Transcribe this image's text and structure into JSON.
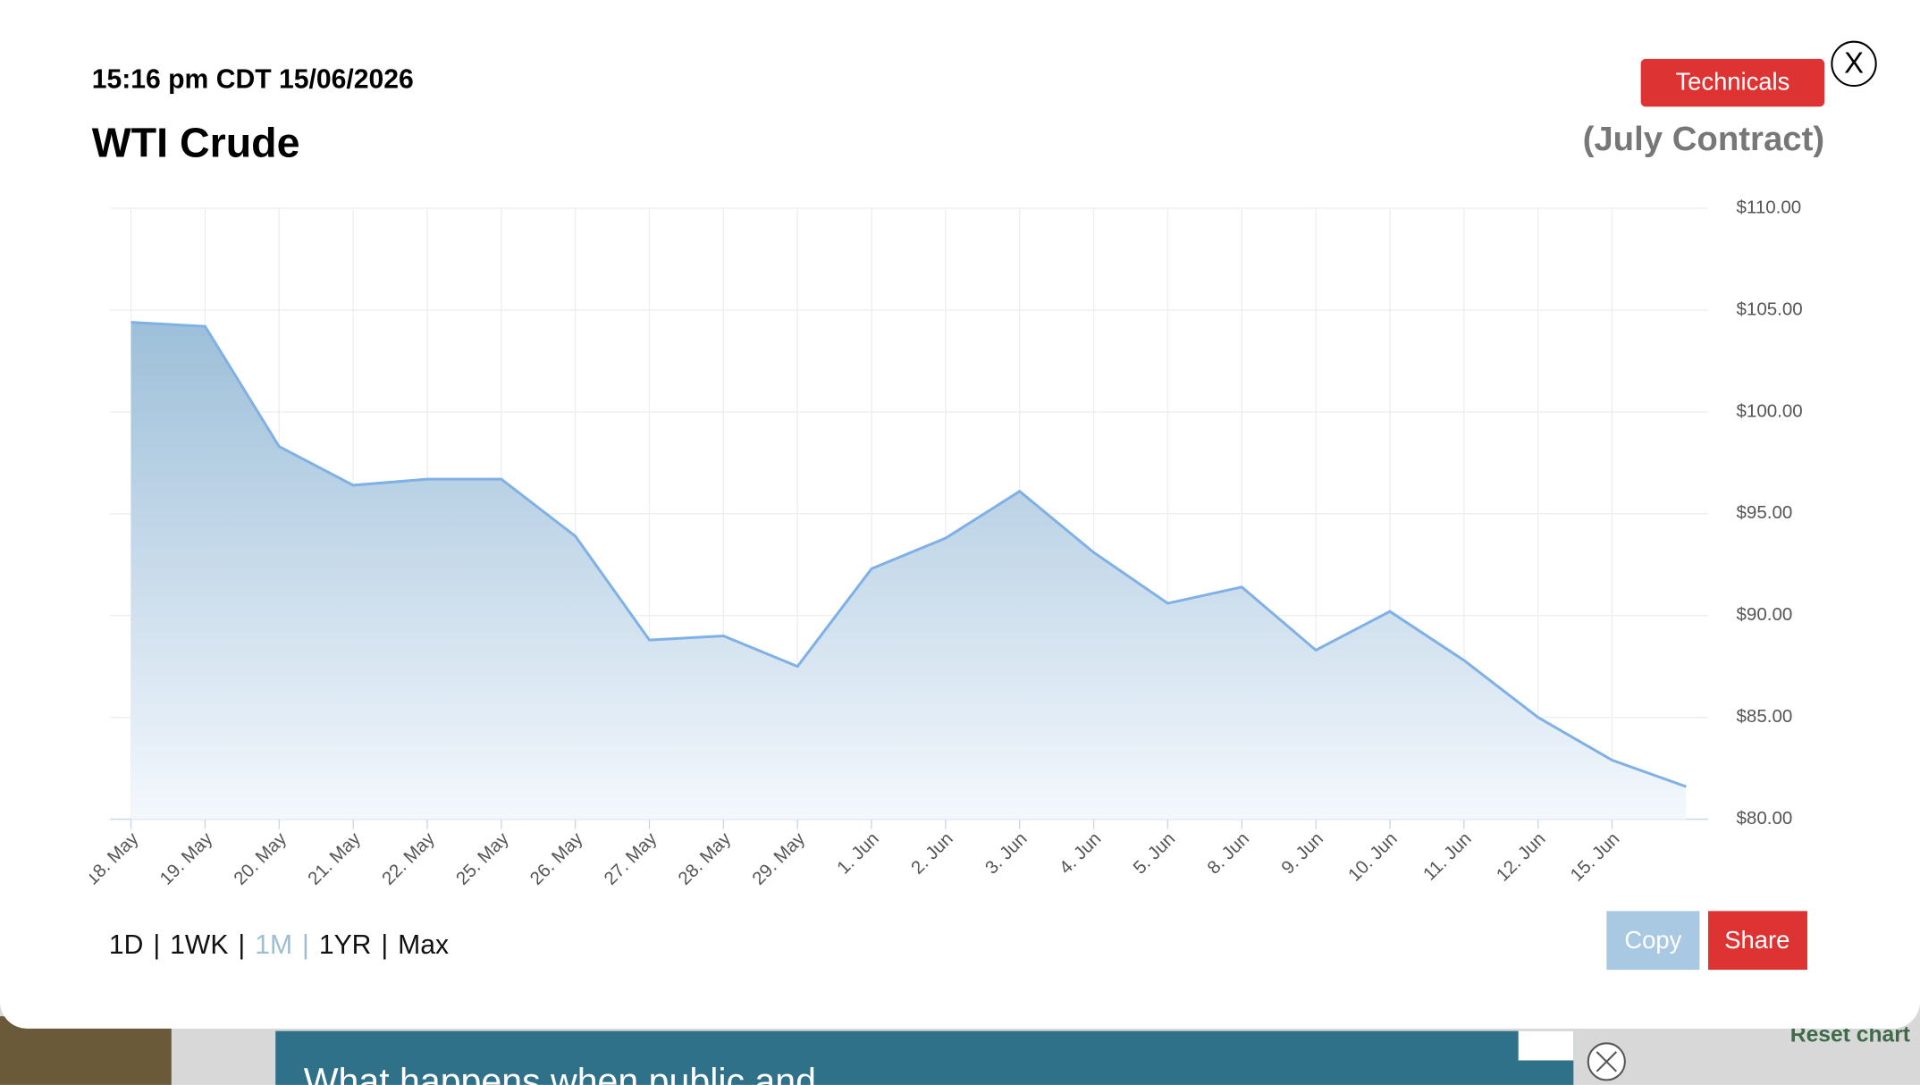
{
  "header": {
    "timestamp": "15:16 pm CDT 15/06/2026",
    "title": "WTI Crude",
    "technicals_button": "Technicals",
    "close_button": "X",
    "contract": "(July Contract)"
  },
  "chart_data": {
    "type": "area",
    "color": "#7fb0e6",
    "categories": [
      "18. May",
      "19. May",
      "20. May",
      "21. May",
      "22. May",
      "25. May",
      "26. May",
      "27. May",
      "28. May",
      "29. May",
      "1. Jun",
      "2. Jun",
      "3. Jun",
      "4. Jun",
      "5. Jun",
      "8. Jun",
      "9. Jun",
      "10. Jun",
      "11. Jun",
      "12. Jun",
      "15. Jun",
      null
    ],
    "values": [
      104.4,
      104.2,
      98.3,
      96.4,
      96.7,
      96.7,
      93.9,
      88.8,
      89.0,
      87.5,
      92.3,
      93.8,
      96.1,
      93.1,
      90.6,
      91.4,
      88.3,
      90.2,
      87.8,
      85.0,
      82.9,
      81.6
    ],
    "ylim": [
      80,
      110
    ],
    "yticks": [
      {
        "value": 80,
        "label": "$80.00"
      },
      {
        "value": 85,
        "label": "$85.00"
      },
      {
        "value": 90,
        "label": "$90.00"
      },
      {
        "value": 95,
        "label": "$95.00"
      },
      {
        "value": 100,
        "label": "$100.00"
      },
      {
        "value": 105,
        "label": "$105.00"
      },
      {
        "value": 110,
        "label": "$110.00"
      }
    ],
    "grid": true
  },
  "ranges": {
    "items": [
      "1D",
      "1WK",
      "1M",
      "1YR",
      "Max"
    ],
    "separator": "|",
    "active": 2
  },
  "actions": {
    "copy": "Copy",
    "share": "Share"
  },
  "background": {
    "ad_text": "What happens when public and",
    "reset": "Reset chart"
  }
}
